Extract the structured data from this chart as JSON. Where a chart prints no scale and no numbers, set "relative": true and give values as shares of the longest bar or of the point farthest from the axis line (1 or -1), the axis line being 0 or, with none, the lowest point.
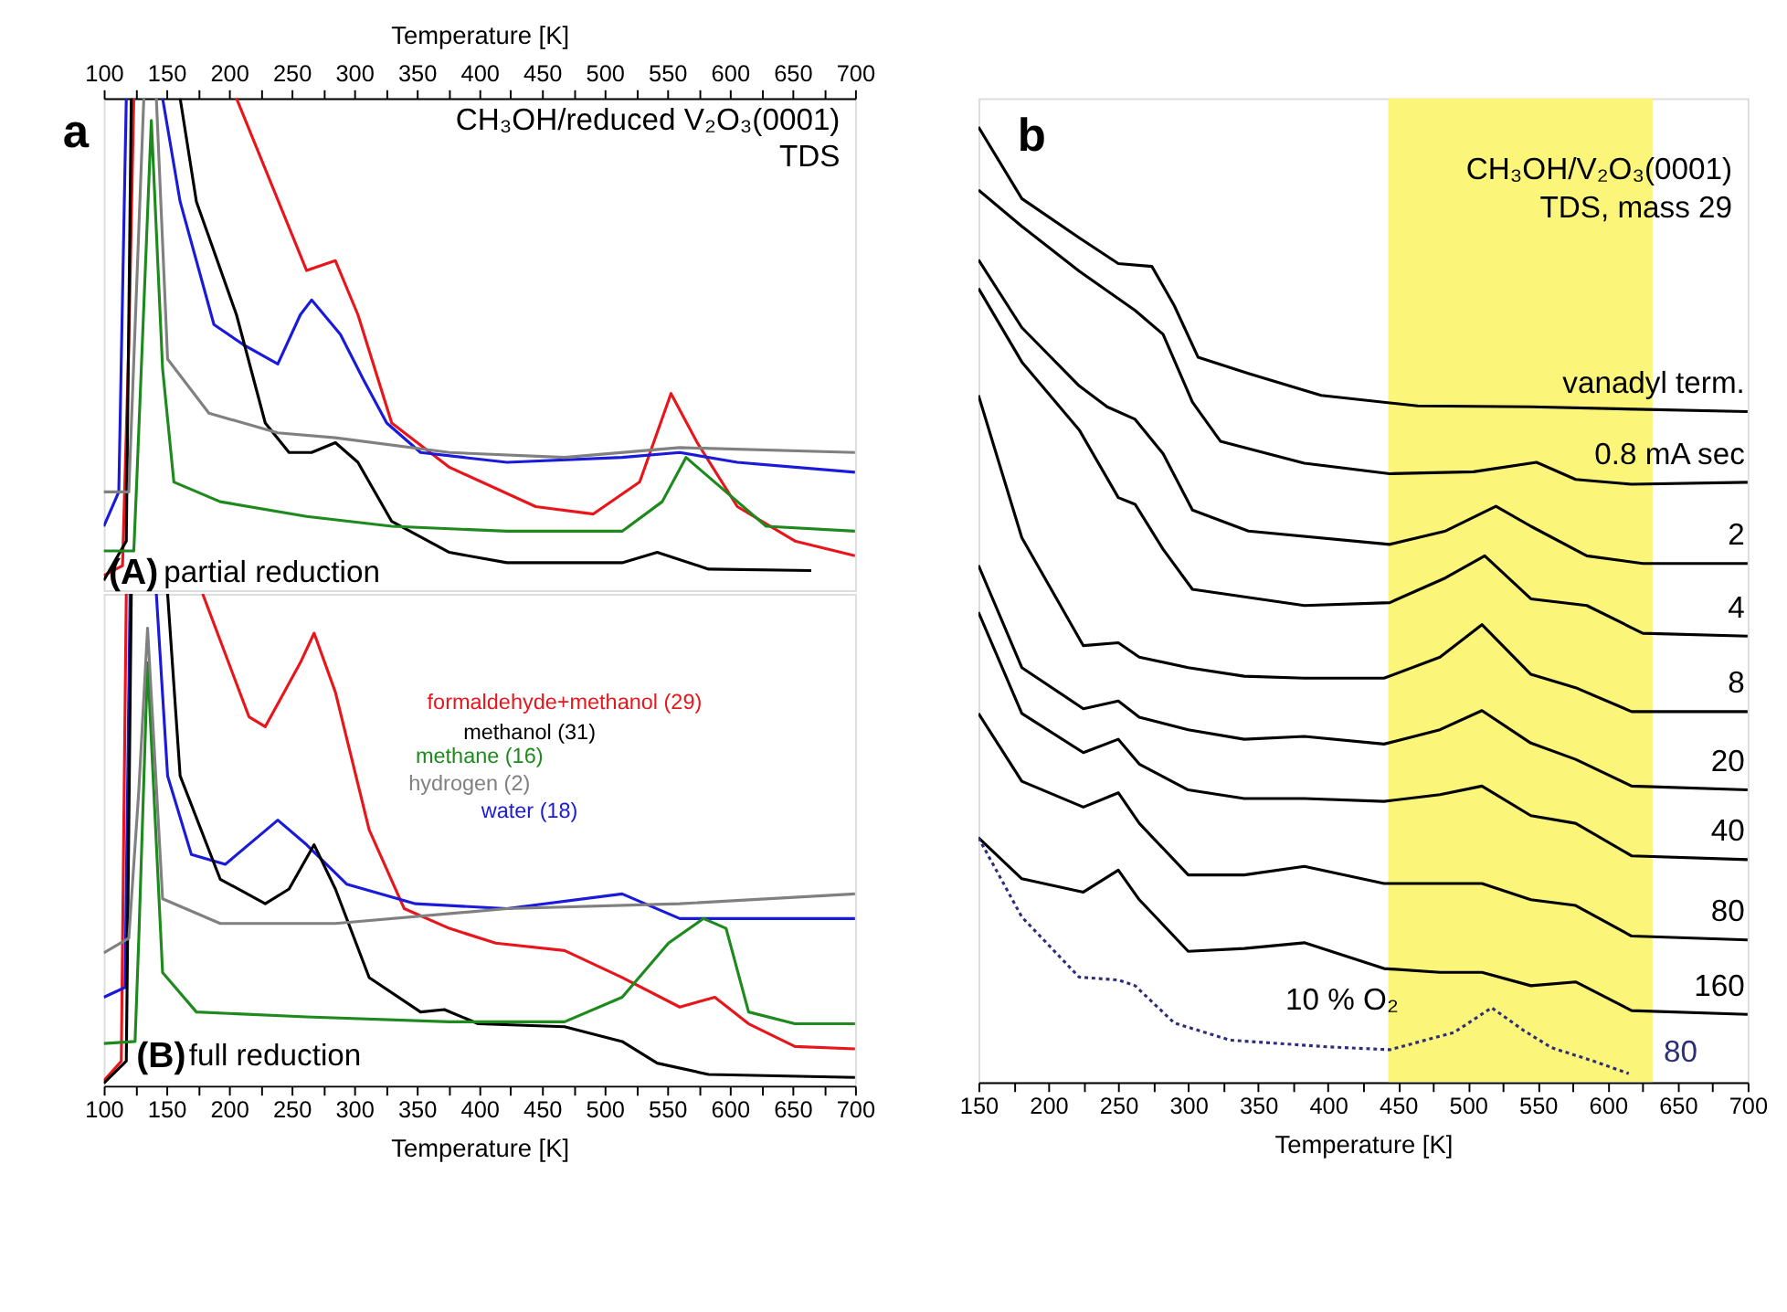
{
  "chart_data": [
    {
      "type": "line",
      "relative": true,
      "title": "CH₃OH/reduced V₂O₃(0001)",
      "subtitle": "TDS",
      "xlabel": "Temperature [K]",
      "xlim": [
        100,
        700
      ],
      "xticks": [
        100,
        {
          "value": 125,
          "label": null
        },
        150,
        {
          "value": 175,
          "label": null
        },
        200,
        {
          "value": 225,
          "label": null
        },
        250,
        {
          "value": 275,
          "label": null
        },
        300,
        {
          "value": 325,
          "label": null
        },
        350,
        {
          "value": 375,
          "label": null
        },
        400,
        {
          "value": 425,
          "label": null
        },
        450,
        {
          "value": 475,
          "label": null
        },
        500,
        {
          "value": 525,
          "label": null
        },
        550,
        {
          "value": 575,
          "label": null
        },
        600,
        {
          "value": 625,
          "label": null
        },
        650,
        {
          "value": 675,
          "label": null
        },
        700
      ],
      "annotations": [
        "a",
        "(A)",
        "partial reduction"
      ],
      "series": [
        {
          "color": "#e8161b",
          "x": [
            100,
            115,
            120,
            124,
            165,
            206,
            262,
            285,
            303,
            330,
            376,
            445,
            491,
            528,
            553,
            574,
            606,
            652,
            700
          ],
          "values": [
            0.03,
            0.05,
            0.5,
            1,
            null,
            1,
            0.65,
            0.67,
            0.56,
            0.34,
            0.25,
            0.17,
            0.155,
            0.22,
            0.4,
            0.3,
            0.17,
            0.1,
            0.07
          ]
        },
        {
          "color": "#1a1adb",
          "x": [
            100,
            112,
            118,
            130,
            147,
            161,
            188,
            211,
            239,
            257,
            266,
            289,
            307,
            326,
            353,
            422,
            514,
            560,
            606,
            700
          ],
          "values": [
            0.13,
            0.2,
            1,
            null,
            1,
            0.79,
            0.54,
            0.5,
            0.46,
            0.56,
            0.59,
            0.52,
            0.43,
            0.34,
            0.28,
            0.26,
            0.27,
            0.28,
            0.26,
            0.24
          ]
        },
        {
          "color": "#000000",
          "x": [
            100,
            118,
            122,
            140,
            161,
            174,
            206,
            229,
            248,
            266,
            285,
            303,
            330,
            376,
            422,
            514,
            542,
            583,
            665
          ],
          "values": [
            0.02,
            0.1,
            1,
            null,
            1,
            0.79,
            0.56,
            0.34,
            0.28,
            0.28,
            0.3,
            0.26,
            0.14,
            0.077,
            0.056,
            0.056,
            0.077,
            0.043,
            0.04
          ]
        },
        {
          "color": "#1e8a1e",
          "x": [
            100,
            124,
            126,
            138,
            147,
            156,
            193,
            262,
            330,
            422,
            514,
            546,
            565,
            597,
            629,
            700
          ],
          "values": [
            0.08,
            0.08,
            0.2,
            0.955,
            0.45,
            0.22,
            0.18,
            0.15,
            0.13,
            0.12,
            0.12,
            0.18,
            0.27,
            0.2,
            0.13,
            0.12
          ]
        },
        {
          "color": "#808080",
          "x": [
            100,
            120,
            126,
            132,
            137,
            142,
            151,
            184,
            239,
            285,
            376,
            468,
            560,
            700
          ],
          "values": [
            0.2,
            0.2,
            0.6,
            1,
            null,
            1,
            0.47,
            0.36,
            0.32,
            0.31,
            0.28,
            0.27,
            0.29,
            0.28
          ]
        }
      ]
    },
    {
      "type": "line",
      "relative": true,
      "xlabel": "Temperature [K]",
      "xlim": [
        100,
        700
      ],
      "xticks": [
        100,
        {
          "value": 125,
          "label": null
        },
        150,
        {
          "value": 175,
          "label": null
        },
        200,
        {
          "value": 225,
          "label": null
        },
        250,
        {
          "value": 275,
          "label": null
        },
        300,
        {
          "value": 325,
          "label": null
        },
        350,
        {
          "value": 375,
          "label": null
        },
        400,
        {
          "value": 425,
          "label": null
        },
        450,
        {
          "value": 475,
          "label": null
        },
        500,
        {
          "value": 525,
          "label": null
        },
        550,
        {
          "value": 575,
          "label": null
        },
        600,
        {
          "value": 625,
          "label": null
        },
        650,
        {
          "value": 675,
          "label": null
        },
        700
      ],
      "annotations": [
        "(B)",
        "full reduction"
      ],
      "series": [
        {
          "name": "formaldehyde+methanol (29)",
          "color": "#e8161b",
          "x": [
            100,
            114,
            118,
            150,
            179,
            216,
            229,
            257,
            268,
            285,
            312,
            340,
            376,
            413,
            468,
            514,
            560,
            588,
            615,
            652,
            700
          ],
          "values": [
            0.01,
            0.05,
            1,
            null,
            1,
            0.75,
            0.73,
            0.86,
            0.92,
            0.8,
            0.52,
            0.36,
            0.32,
            0.29,
            0.275,
            0.22,
            0.16,
            0.18,
            0.126,
            0.08,
            0.075
          ]
        },
        {
          "name": "water (18)",
          "color": "#1a1adb",
          "x": [
            100,
            117,
            121,
            130,
            142,
            151,
            170,
            197,
            239,
            262,
            294,
            349,
            422,
            514,
            560,
            700
          ],
          "values": [
            0.18,
            0.2,
            1,
            null,
            1,
            0.63,
            0.47,
            0.45,
            0.54,
            0.49,
            0.41,
            0.37,
            0.36,
            0.39,
            0.34,
            0.34
          ]
        },
        {
          "name": "methanol (31)",
          "color": "#000000",
          "x": [
            100,
            118,
            122,
            135,
            151,
            161,
            193,
            229,
            248,
            268,
            285,
            312,
            353,
            372,
            399,
            468,
            514,
            542,
            583,
            700
          ],
          "values": [
            0.005,
            0.05,
            1,
            null,
            1,
            0.63,
            0.42,
            0.37,
            0.4,
            0.49,
            0.4,
            0.22,
            0.15,
            0.155,
            0.126,
            0.12,
            0.09,
            0.046,
            0.023,
            0.017
          ]
        },
        {
          "name": "methane (16)",
          "color": "#1e8a1e",
          "x": [
            100,
            125,
            128,
            135,
            147,
            174,
            262,
            376,
            468,
            514,
            551,
            579,
            597,
            615,
            652,
            700
          ],
          "values": [
            0.086,
            0.09,
            0.3,
            0.86,
            0.23,
            0.15,
            0.14,
            0.13,
            0.13,
            0.18,
            0.29,
            0.34,
            0.32,
            0.15,
            0.126,
            0.126
          ]
        },
        {
          "name": "hydrogen (2)",
          "color": "#808080",
          "x": [
            100,
            120,
            128,
            135,
            147,
            193,
            285,
            422,
            560,
            700
          ],
          "values": [
            0.27,
            0.3,
            0.6,
            0.93,
            0.38,
            0.33,
            0.33,
            0.36,
            0.37,
            0.39
          ]
        }
      ]
    },
    {
      "type": "line",
      "relative": true,
      "title": "CH₃OH/V₂O₃(0001)",
      "subtitle": "TDS, mass 29",
      "xlabel": "Temperature [K]",
      "xlim": [
        150,
        700
      ],
      "xticks": [
        150,
        {
          "value": 175,
          "label": null
        },
        200,
        {
          "value": 225,
          "label": null
        },
        250,
        {
          "value": 275,
          "label": null
        },
        300,
        {
          "value": 325,
          "label": null
        },
        350,
        {
          "value": 375,
          "label": null
        },
        400,
        {
          "value": 425,
          "label": null
        },
        450,
        {
          "value": 475,
          "label": null
        },
        500,
        {
          "value": 525,
          "label": null
        },
        550,
        {
          "value": 575,
          "label": null
        },
        600,
        {
          "value": 625,
          "label": null
        },
        650,
        {
          "value": 675,
          "label": null
        },
        700
      ],
      "bands": [
        {
          "axis": "x",
          "from": 443,
          "to": 632,
          "color": "#fbf57a"
        }
      ],
      "annotations": [
        "b",
        "10 % O₂"
      ],
      "series": [
        {
          "name": "vanadyl term.",
          "color": "#000000",
          "x": [
            150,
            181,
            222,
            250,
            274,
            290,
            307,
            343,
            395,
            464,
            545,
            700
          ],
          "values": [
            1.0,
            0.925,
            0.884,
            0.857,
            0.854,
            0.813,
            0.759,
            0.742,
            0.719,
            0.708,
            0.707,
            0.702
          ]
        },
        {
          "name": "0.8 mA sec",
          "color": "#000000",
          "x": [
            150,
            181,
            222,
            262,
            282,
            303,
            323,
            383,
            444,
            504,
            549,
            577,
            617,
            700
          ],
          "values": [
            0.934,
            0.896,
            0.849,
            0.808,
            0.783,
            0.712,
            0.671,
            0.648,
            0.637,
            0.639,
            0.649,
            0.631,
            0.626,
            0.628
          ]
        },
        {
          "name": "2",
          "color": "#000000",
          "x": [
            150,
            181,
            222,
            242,
            262,
            282,
            303,
            343,
            444,
            484,
            520,
            545,
            585,
            625,
            700
          ],
          "values": [
            0.861,
            0.79,
            0.729,
            0.707,
            0.694,
            0.658,
            0.599,
            0.577,
            0.563,
            0.577,
            0.603,
            0.582,
            0.551,
            0.543,
            0.543
          ]
        },
        {
          "name": "4",
          "color": "#000000",
          "x": [
            150,
            181,
            222,
            250,
            262,
            282,
            303,
            383,
            444,
            484,
            512,
            545,
            585,
            625,
            700
          ],
          "values": [
            0.831,
            0.754,
            0.683,
            0.612,
            0.605,
            0.558,
            0.516,
            0.499,
            0.502,
            0.528,
            0.551,
            0.506,
            0.499,
            0.47,
            0.467
          ]
        },
        {
          "name": "8",
          "color": "#000000",
          "x": [
            150,
            181,
            225,
            250,
            265,
            300,
            340,
            383,
            440,
            480,
            510,
            545,
            577,
            617,
            700
          ],
          "values": [
            0.719,
            0.57,
            0.457,
            0.46,
            0.445,
            0.434,
            0.425,
            0.423,
            0.423,
            0.445,
            0.479,
            0.427,
            0.413,
            0.388,
            0.388
          ]
        },
        {
          "name": "20",
          "color": "#000000",
          "x": [
            150,
            181,
            225,
            250,
            265,
            300,
            340,
            383,
            440,
            480,
            510,
            545,
            577,
            617,
            700
          ],
          "values": [
            0.541,
            0.434,
            0.391,
            0.399,
            0.382,
            0.369,
            0.359,
            0.362,
            0.354,
            0.369,
            0.389,
            0.355,
            0.338,
            0.31,
            0.306
          ]
        },
        {
          "name": "40",
          "color": "#000000",
          "x": [
            150,
            181,
            225,
            250,
            265,
            300,
            340,
            383,
            440,
            480,
            510,
            545,
            577,
            617,
            700
          ],
          "values": [
            0.492,
            0.386,
            0.345,
            0.359,
            0.333,
            0.306,
            0.297,
            0.297,
            0.294,
            0.301,
            0.31,
            0.279,
            0.271,
            0.237,
            0.233
          ]
        },
        {
          "name": "80",
          "color": "#000000",
          "x": [
            150,
            181,
            225,
            250,
            265,
            300,
            340,
            383,
            440,
            480,
            510,
            545,
            577,
            617,
            700
          ],
          "values": [
            0.386,
            0.315,
            0.288,
            0.303,
            0.271,
            0.217,
            0.217,
            0.226,
            0.208,
            0.208,
            0.208,
            0.191,
            0.185,
            0.153,
            0.149
          ]
        },
        {
          "name": "160",
          "color": "#000000",
          "x": [
            150,
            181,
            225,
            250,
            265,
            300,
            340,
            383,
            440,
            480,
            510,
            545,
            577,
            617,
            700
          ],
          "values": [
            0.256,
            0.213,
            0.199,
            0.222,
            0.191,
            0.137,
            0.14,
            0.146,
            0.119,
            0.115,
            0.115,
            0.101,
            0.105,
            0.075,
            0.071
          ]
        },
        {
          "name": "80",
          "color": "#2d2d7a",
          "line_style": "dotted",
          "x": [
            150,
            181,
            222,
            250,
            262,
            290,
            330,
            400,
            444,
            490,
            517,
            540,
            560,
            590,
            615
          ],
          "values": [
            0.256,
            0.173,
            0.11,
            0.107,
            0.101,
            0.062,
            0.044,
            0.037,
            0.034,
            0.052,
            0.078,
            0.054,
            0.036,
            0.022,
            0.009
          ]
        }
      ]
    }
  ]
}
